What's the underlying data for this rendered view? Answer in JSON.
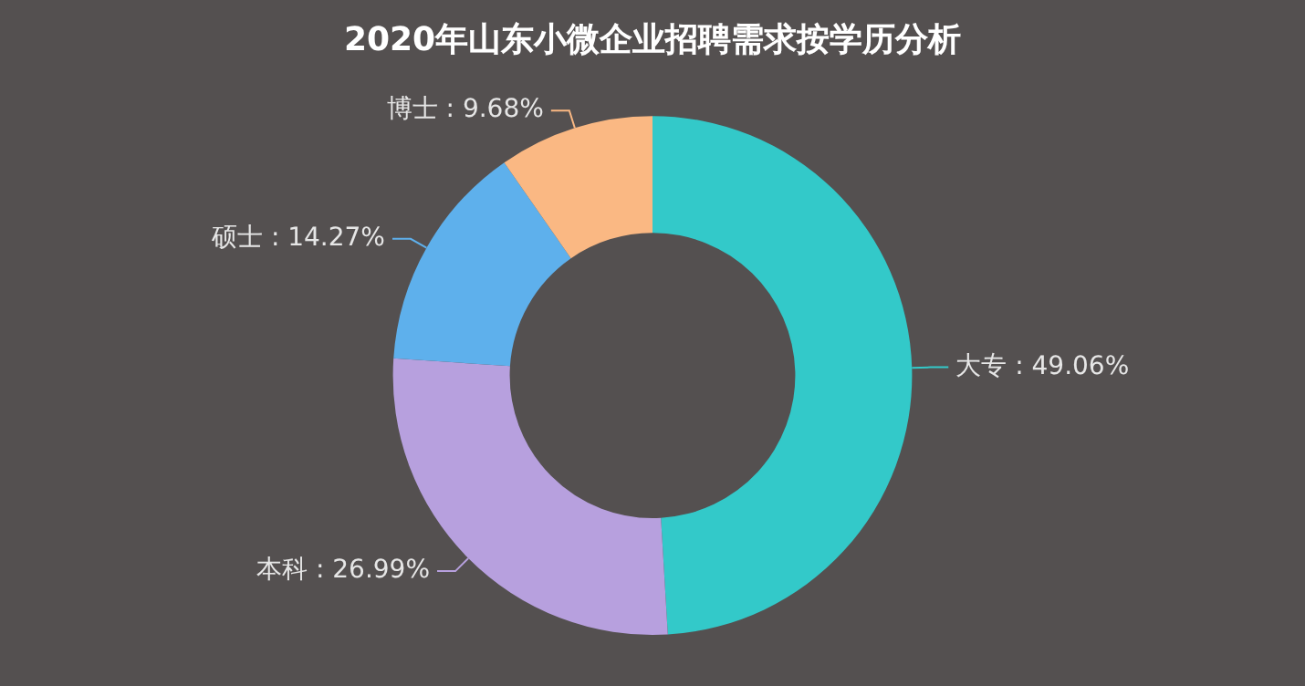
{
  "chart_data": {
    "type": "donut",
    "title": "2020年山东小微企业招聘需求按学历分析",
    "categories": [
      "大专",
      "本科",
      "硕士",
      "博士"
    ],
    "values": [
      49.06,
      26.99,
      14.27,
      9.68
    ],
    "colors": [
      "#33c9c9",
      "#b7a0de",
      "#5eb0ec",
      "#fab883"
    ],
    "value_labels": [
      ": 49.06%",
      ": 26.99%",
      ": 14.27%",
      ": 9.68%"
    ],
    "legend": false
  }
}
